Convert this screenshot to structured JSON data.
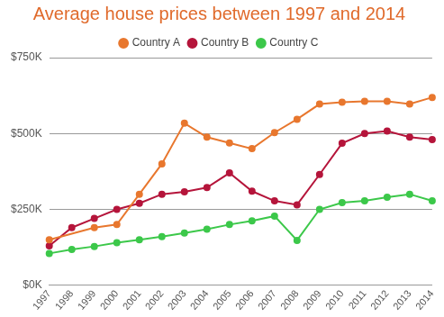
{
  "chart_data": {
    "type": "line",
    "title": "Average house prices between 1997 and 2014",
    "categories": [
      "1997",
      "1998",
      "1999",
      "2000",
      "2001",
      "2002",
      "2003",
      "2004",
      "2005",
      "2006",
      "2007",
      "2008",
      "2009",
      "2010",
      "2011",
      "2012",
      "2013",
      "2014"
    ],
    "series": [
      {
        "name": "Country A",
        "color": "#e8772e",
        "values": [
          150,
          null,
          190,
          200,
          300,
          400,
          534,
          488,
          469,
          450,
          503,
          547,
          597,
          603,
          606,
          606,
          597,
          619
        ]
      },
      {
        "name": "Country B",
        "color": "#b5153b",
        "values": [
          130,
          190,
          220,
          250,
          270,
          300,
          308,
          322,
          370,
          310,
          278,
          265,
          365,
          468,
          500,
          508,
          488,
          480
        ]
      },
      {
        "name": "Country C",
        "color": "#3cc84a",
        "values": [
          105,
          118,
          128,
          140,
          150,
          160,
          172,
          185,
          200,
          212,
          228,
          148,
          250,
          272,
          278,
          290,
          300,
          278
        ]
      }
    ],
    "ylim": [
      0,
      750
    ],
    "yticks": [
      {
        "value": 0,
        "label": "$0K"
      },
      {
        "value": 250,
        "label": "$250K"
      },
      {
        "value": 500,
        "label": "$500K"
      },
      {
        "value": 750,
        "label": "$750K"
      }
    ],
    "grid": true,
    "legend": "top",
    "marker": "circle"
  }
}
